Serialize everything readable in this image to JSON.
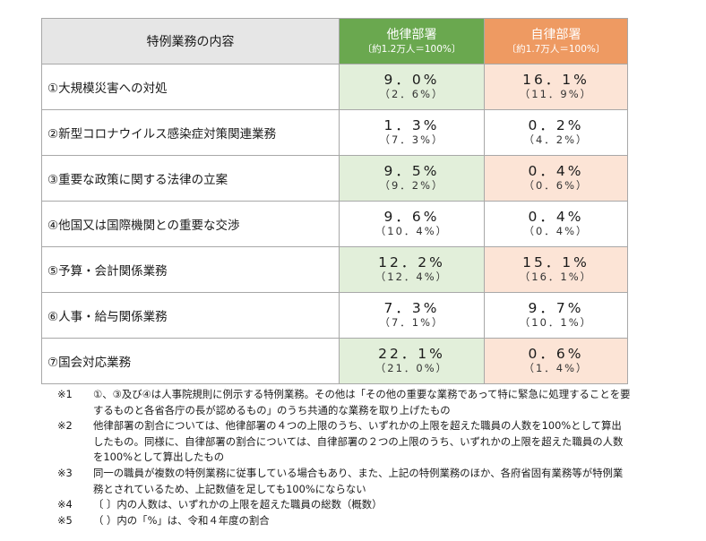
{
  "header": {
    "content_label": "特例業務の内容",
    "other_dept": "他律部署",
    "other_sub": "〔約1.2万人＝100%〕",
    "self_dept": "自律部署",
    "self_sub": "〔約1.7万人＝100%〕"
  },
  "colors": {
    "other_header": "#6aa84f",
    "self_header": "#ee9a62",
    "other_highlight": "#e2efda",
    "self_highlight": "#fce4d6"
  },
  "rows": [
    {
      "label": "①大規模災害への対処",
      "other": "9．0%",
      "other_prev": "（2．6%）",
      "self": "16．1%",
      "self_prev": "（11．9%）"
    },
    {
      "label": "②新型コロナウイルス感染症対策関連業務",
      "other": "1．3%",
      "other_prev": "（7．3%）",
      "self": "0．2%",
      "self_prev": "（4．2%）"
    },
    {
      "label": "③重要な政策に関する法律の立案",
      "other": "9．5%",
      "other_prev": "（9．2%）",
      "self": "0．4%",
      "self_prev": "（0．6%）"
    },
    {
      "label": "④他国又は国際機関との重要な交渉",
      "other": "9．6%",
      "other_prev": "（10．4%）",
      "self": "0．4%",
      "self_prev": "（0．4%）"
    },
    {
      "label": "⑤予算・会計関係業務",
      "other": "12．2%",
      "other_prev": "（12．4%）",
      "self": "15．1%",
      "self_prev": "（16．1%）"
    },
    {
      "label": "⑥人事・給与関係業務",
      "other": "7．3%",
      "other_prev": "（7．1%）",
      "self": "9．7%",
      "self_prev": "（10．1%）"
    },
    {
      "label": "⑦国会対応業務",
      "other": "22．1%",
      "other_prev": "（21．0%）",
      "self": "0．6%",
      "self_prev": "（1．4%）"
    }
  ],
  "notes": [
    {
      "mark": "※1",
      "text": "①、③及び④は人事院規則に例示する特例業務。その他は「その他の重要な業務であって特に緊急に処理することを要するものと各省各庁の長が認めるもの」のうち共通的な業務を取り上げたもの"
    },
    {
      "mark": "※2",
      "text": "他律部署の割合については、他律部署の４つの上限のうち、いずれかの上限を超えた職員の人数を100%として算出したもの。同様に、自律部署の割合については、自律部署の２つの上限のうち、いずれかの上限を超えた職員の人数を100%として算出したもの"
    },
    {
      "mark": "※3",
      "text": "同一の職員が複数の特例業務に従事している場合もあり、また、上記の特例業務のほか、各府省固有業務等が特例業務とされているため、上記数値を足しても100%にならない"
    },
    {
      "mark": "※4",
      "text": "〔 〕内の人数は、いずれかの上限を超えた職員の総数（概数）"
    },
    {
      "mark": "※5",
      "text": "（ ）内の「%」は、令和４年度の割合"
    }
  ]
}
